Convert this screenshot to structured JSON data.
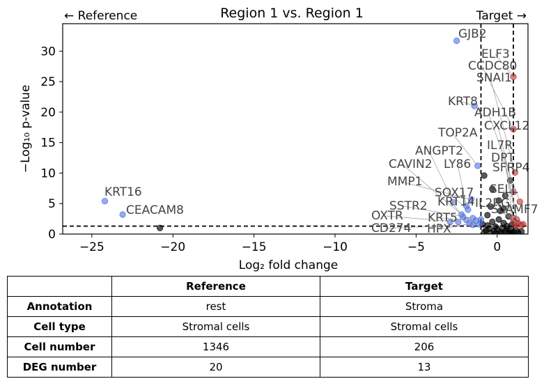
{
  "chart_data": {
    "type": "scatter",
    "title": "Region 1 vs. Region 1",
    "xlabel": "Log₂ fold change",
    "ylabel": "−Log₁₀ p-value",
    "xlim": [
      -26.8,
      1.9
    ],
    "ylim": [
      0,
      34.5
    ],
    "xticks": [
      -25,
      -20,
      -15,
      -10,
      -5,
      0
    ],
    "xtick_labels": [
      "−25",
      "−20",
      "−15",
      "−10",
      "−5",
      "0"
    ],
    "yticks": [
      0,
      5,
      10,
      15,
      20,
      25,
      30
    ],
    "ytick_labels": [
      "0",
      "5",
      "10",
      "15",
      "20",
      "25",
      "30"
    ],
    "grid": false,
    "left_arrow_label": "← Reference",
    "right_arrow_label": "Target →",
    "thresholds": {
      "pvalue_line_y": 1.3,
      "fc_lines_x": [
        -1,
        1
      ]
    },
    "colors": {
      "reference": "#4169E1",
      "target": "#B22222",
      "ns": "#000000",
      "label": "#444444"
    },
    "series": [
      {
        "name": "reference",
        "points": [
          {
            "x": -24.2,
            "y": 5.4,
            "label": "KRT16"
          },
          {
            "x": -23.1,
            "y": 3.2,
            "label": "CEACAM8"
          },
          {
            "x": -2.5,
            "y": 31.7,
            "label": "GJB2"
          },
          {
            "x": -1.4,
            "y": 21.0,
            "label": "KRT8"
          },
          {
            "x": -1.2,
            "y": 11.2,
            "label": "TOP2A"
          },
          {
            "x": -2.7,
            "y": 5.2,
            "label": "ANGPT2"
          },
          {
            "x": -1.9,
            "y": 4.6,
            "label": "LY86"
          },
          {
            "x": -2.2,
            "y": 3.2,
            "label": "CAVIN2"
          },
          {
            "x": -1.6,
            "y": 5.7,
            "label": "MMP1"
          },
          {
            "x": -1.8,
            "y": 4.0,
            "label": "SOX17"
          },
          {
            "x": -2.1,
            "y": 2.8,
            "label": "KRT14"
          },
          {
            "x": -1.5,
            "y": 2.6,
            "label": "SSTR2"
          },
          {
            "x": -1.3,
            "y": 2.2,
            "label": "KRT5"
          },
          {
            "x": -2.4,
            "y": 2.0,
            "label": "OXTR"
          },
          {
            "x": -1.7,
            "y": 1.7,
            "label": "HPX"
          },
          {
            "x": -1.1,
            "y": 1.6,
            "label": "CD274"
          },
          {
            "x": -1.0,
            "y": 2.4,
            "label": ""
          },
          {
            "x": -1.5,
            "y": 1.5,
            "label": ""
          },
          {
            "x": -1.9,
            "y": 2.3,
            "label": ""
          },
          {
            "x": -2.9,
            "y": 2.0,
            "label": ""
          }
        ]
      },
      {
        "name": "target",
        "points": [
          {
            "x": 1.0,
            "y": 25.8,
            "label": "ELF3"
          },
          {
            "x": 1.0,
            "y": 17.2,
            "label": "CCDC80"
          },
          {
            "x": 1.1,
            "y": 10.1,
            "label": "SNAI1"
          },
          {
            "x": 1.4,
            "y": 5.3,
            "label": "ADH1B"
          },
          {
            "x": 1.0,
            "y": 6.9,
            "label": "CXCL12"
          },
          {
            "x": 1.2,
            "y": 2.4,
            "label": "IL7R"
          },
          {
            "x": 1.0,
            "y": 2.1,
            "label": "DPT"
          },
          {
            "x": 1.3,
            "y": 1.8,
            "label": "SFRP4"
          },
          {
            "x": 1.1,
            "y": 1.5,
            "label": "SELL"
          },
          {
            "x": 1.5,
            "y": 1.4,
            "label": "IL2RG"
          },
          {
            "x": 1.2,
            "y": 1.7,
            "label": "SLAMF7"
          },
          {
            "x": 1.0,
            "y": 2.6,
            "label": ""
          },
          {
            "x": 1.6,
            "y": 1.6,
            "label": ""
          }
        ]
      },
      {
        "name": "ns",
        "points": [
          {
            "x": -20.8,
            "y": 1.0,
            "label": ""
          },
          {
            "x": -0.8,
            "y": 9.6,
            "label": ""
          },
          {
            "x": 0.8,
            "y": 8.8,
            "label": ""
          },
          {
            "x": 0.5,
            "y": 6.3,
            "label": ""
          },
          {
            "x": -0.4,
            "y": 4.5,
            "label": ""
          },
          {
            "x": 0.2,
            "y": 3.8,
            "label": ""
          },
          {
            "x": -0.6,
            "y": 3.1,
            "label": ""
          },
          {
            "x": 0.7,
            "y": 2.9,
            "label": ""
          },
          {
            "x": 0.1,
            "y": 2.4,
            "label": ""
          },
          {
            "x": -0.3,
            "y": 2.0,
            "label": ""
          },
          {
            "x": 0.4,
            "y": 1.8,
            "label": ""
          },
          {
            "x": -0.9,
            "y": 1.6,
            "label": ""
          },
          {
            "x": 0.9,
            "y": 1.5,
            "label": ""
          },
          {
            "x": -0.1,
            "y": 1.2,
            "label": ""
          },
          {
            "x": 0.3,
            "y": 1.0,
            "label": ""
          },
          {
            "x": -0.5,
            "y": 0.9,
            "label": ""
          },
          {
            "x": 0.6,
            "y": 0.8,
            "label": ""
          },
          {
            "x": 0.0,
            "y": 0.7,
            "label": ""
          },
          {
            "x": -0.7,
            "y": 0.6,
            "label": ""
          },
          {
            "x": 0.8,
            "y": 0.5,
            "label": ""
          },
          {
            "x": -0.2,
            "y": 0.5,
            "label": ""
          },
          {
            "x": 0.5,
            "y": 0.4,
            "label": ""
          },
          {
            "x": 1.2,
            "y": 0.6,
            "label": ""
          },
          {
            "x": 1.5,
            "y": 0.4,
            "label": ""
          },
          {
            "x": -0.8,
            "y": 0.3,
            "label": ""
          },
          {
            "x": 0.2,
            "y": 0.3,
            "label": ""
          },
          {
            "x": 0.9,
            "y": 0.2,
            "label": ""
          },
          {
            "x": -0.4,
            "y": 0.2,
            "label": ""
          },
          {
            "x": 0.7,
            "y": 0.15,
            "label": ""
          },
          {
            "x": 1.0,
            "y": 0.3,
            "label": ""
          },
          {
            "x": 0.3,
            "y": 0.1,
            "label": ""
          },
          {
            "x": -0.1,
            "y": 0.1,
            "label": ""
          },
          {
            "x": 1.3,
            "y": 0.2,
            "label": ""
          },
          {
            "x": 0.6,
            "y": 1.3,
            "label": ""
          },
          {
            "x": -0.6,
            "y": 1.4,
            "label": ""
          },
          {
            "x": 0.1,
            "y": 5.5,
            "label": ""
          },
          {
            "x": -0.3,
            "y": 7.4,
            "label": ""
          },
          {
            "x": 0.4,
            "y": 4.2,
            "label": ""
          }
        ]
      }
    ]
  },
  "table": {
    "headers": [
      "",
      "Reference",
      "Target"
    ],
    "rows": [
      {
        "label": "Annotation",
        "reference": "rest",
        "target": "Stroma"
      },
      {
        "label": "Cell type",
        "reference": "Stromal cells",
        "target": "Stromal cells"
      },
      {
        "label": "Cell number",
        "reference": "1346",
        "target": "206"
      },
      {
        "label": "DEG number",
        "reference": "20",
        "target": "13"
      }
    ]
  }
}
